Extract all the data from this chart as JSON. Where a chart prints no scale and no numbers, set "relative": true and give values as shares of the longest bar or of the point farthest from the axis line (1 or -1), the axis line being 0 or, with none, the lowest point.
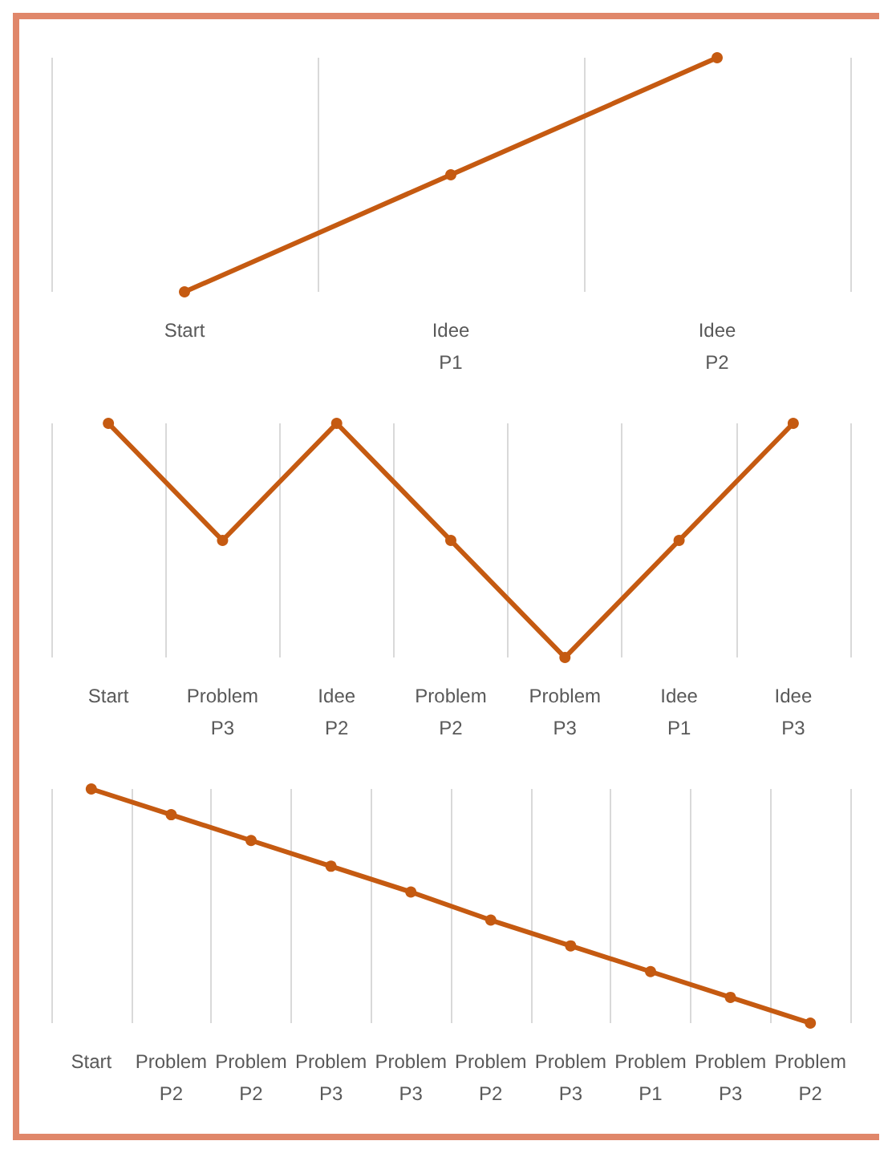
{
  "chart_data": [
    {
      "type": "line",
      "relative": true,
      "categories": [
        "Start",
        "Idee P1",
        "Idee P2"
      ],
      "series": [
        {
          "color": "#c55a11",
          "values": [
            0,
            0.5,
            1
          ]
        }
      ],
      "grid": "x",
      "marker": "circle",
      "line_style": "solid"
    },
    {
      "type": "line",
      "relative": true,
      "categories": [
        "Start",
        "Problem P3",
        "Idee P2",
        "Problem P2",
        "Problem P3",
        "Idee P1",
        "Idee P3"
      ],
      "series": [
        {
          "color": "#c55a11",
          "values": [
            1,
            0.5,
            1,
            0.5,
            0,
            0.5,
            1
          ]
        }
      ],
      "grid": "x",
      "marker": "circle",
      "line_style": "solid"
    },
    {
      "type": "line",
      "relative": true,
      "categories": [
        "Start",
        "Problem P2",
        "Problem P2",
        "Problem P3",
        "Problem P3",
        "Problem P2",
        "Problem P3",
        "Problem P1",
        "Problem P3",
        "Problem P2"
      ],
      "series": [
        {
          "color": "#c55a11",
          "values": [
            1,
            0.89,
            0.78,
            0.67,
            0.56,
            0.44,
            0.33,
            0.22,
            0.11,
            0
          ]
        }
      ],
      "grid": "x",
      "marker": "circle",
      "line_style": "solid"
    }
  ]
}
